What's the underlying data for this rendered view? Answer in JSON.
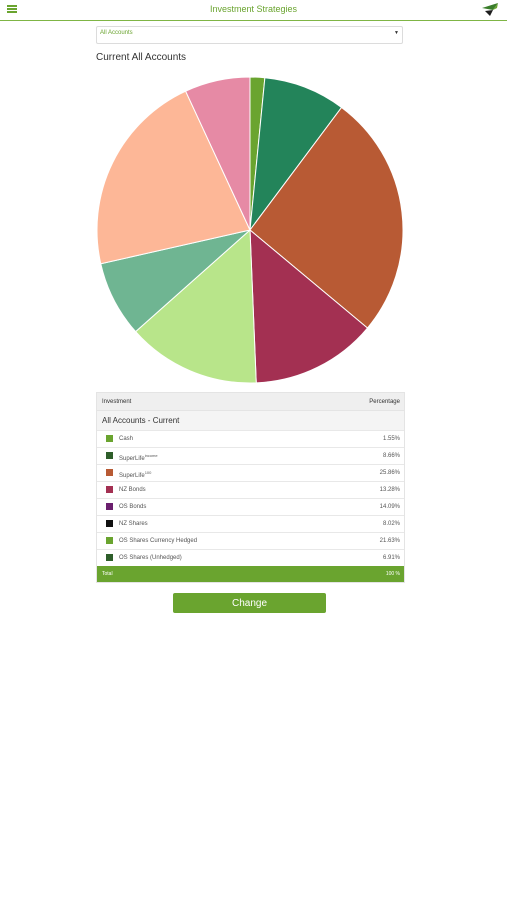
{
  "header": {
    "title": "Investment Strategies",
    "menu_icon": "hamburger-menu-icon",
    "logo_icon": "superlife-logo-icon",
    "accent_color": "#6aa42f"
  },
  "account_select": {
    "value": "All Accounts"
  },
  "chart": {
    "title": "Current All Accounts"
  },
  "chart_data": {
    "type": "pie",
    "title": "Current All Accounts",
    "categories": [
      "Cash",
      "SuperLife",
      "SuperLife",
      "NZ Bonds",
      "OS Bonds",
      "NZ Shares",
      "OS Shares Currency Hedged",
      "OS Shares (Unhedged)"
    ],
    "values": [
      1.55,
      8.66,
      25.86,
      13.28,
      14.09,
      8.02,
      21.63,
      6.91
    ],
    "colors": [
      "#6aa42f",
      "#23845a",
      "#b85a34",
      "#a33052",
      "#b8e58a",
      "#6fb592",
      "#fdb797",
      "#e68aa5"
    ]
  },
  "table": {
    "header_investment": "Investment",
    "header_percentage": "Percentage",
    "group_label": "All Accounts - Current",
    "rows": [
      {
        "name": "Cash",
        "sup": "",
        "pct": "1.55%",
        "color": "#6aa42f"
      },
      {
        "name": "SuperLife",
        "sup": "income",
        "pct": "8.66%",
        "color": "#2e5e2a"
      },
      {
        "name": "SuperLife",
        "sup": "100",
        "pct": "25.86%",
        "color": "#b85a34"
      },
      {
        "name": "NZ Bonds",
        "sup": "",
        "pct": "13.28%",
        "color": "#a33052"
      },
      {
        "name": "OS Bonds",
        "sup": "",
        "pct": "14.09%",
        "color": "#6b1f6e"
      },
      {
        "name": "NZ Shares",
        "sup": "",
        "pct": "8.02%",
        "color": "#111111"
      },
      {
        "name": "OS Shares Currency Hedged",
        "sup": "",
        "pct": "21.63%",
        "color": "#6aa42f"
      },
      {
        "name": "OS Shares (Unhedged)",
        "sup": "",
        "pct": "6.91%",
        "color": "#2e5e2a"
      }
    ],
    "total_label": "Total",
    "total_value": "100 %"
  },
  "actions": {
    "change_label": "Change"
  }
}
